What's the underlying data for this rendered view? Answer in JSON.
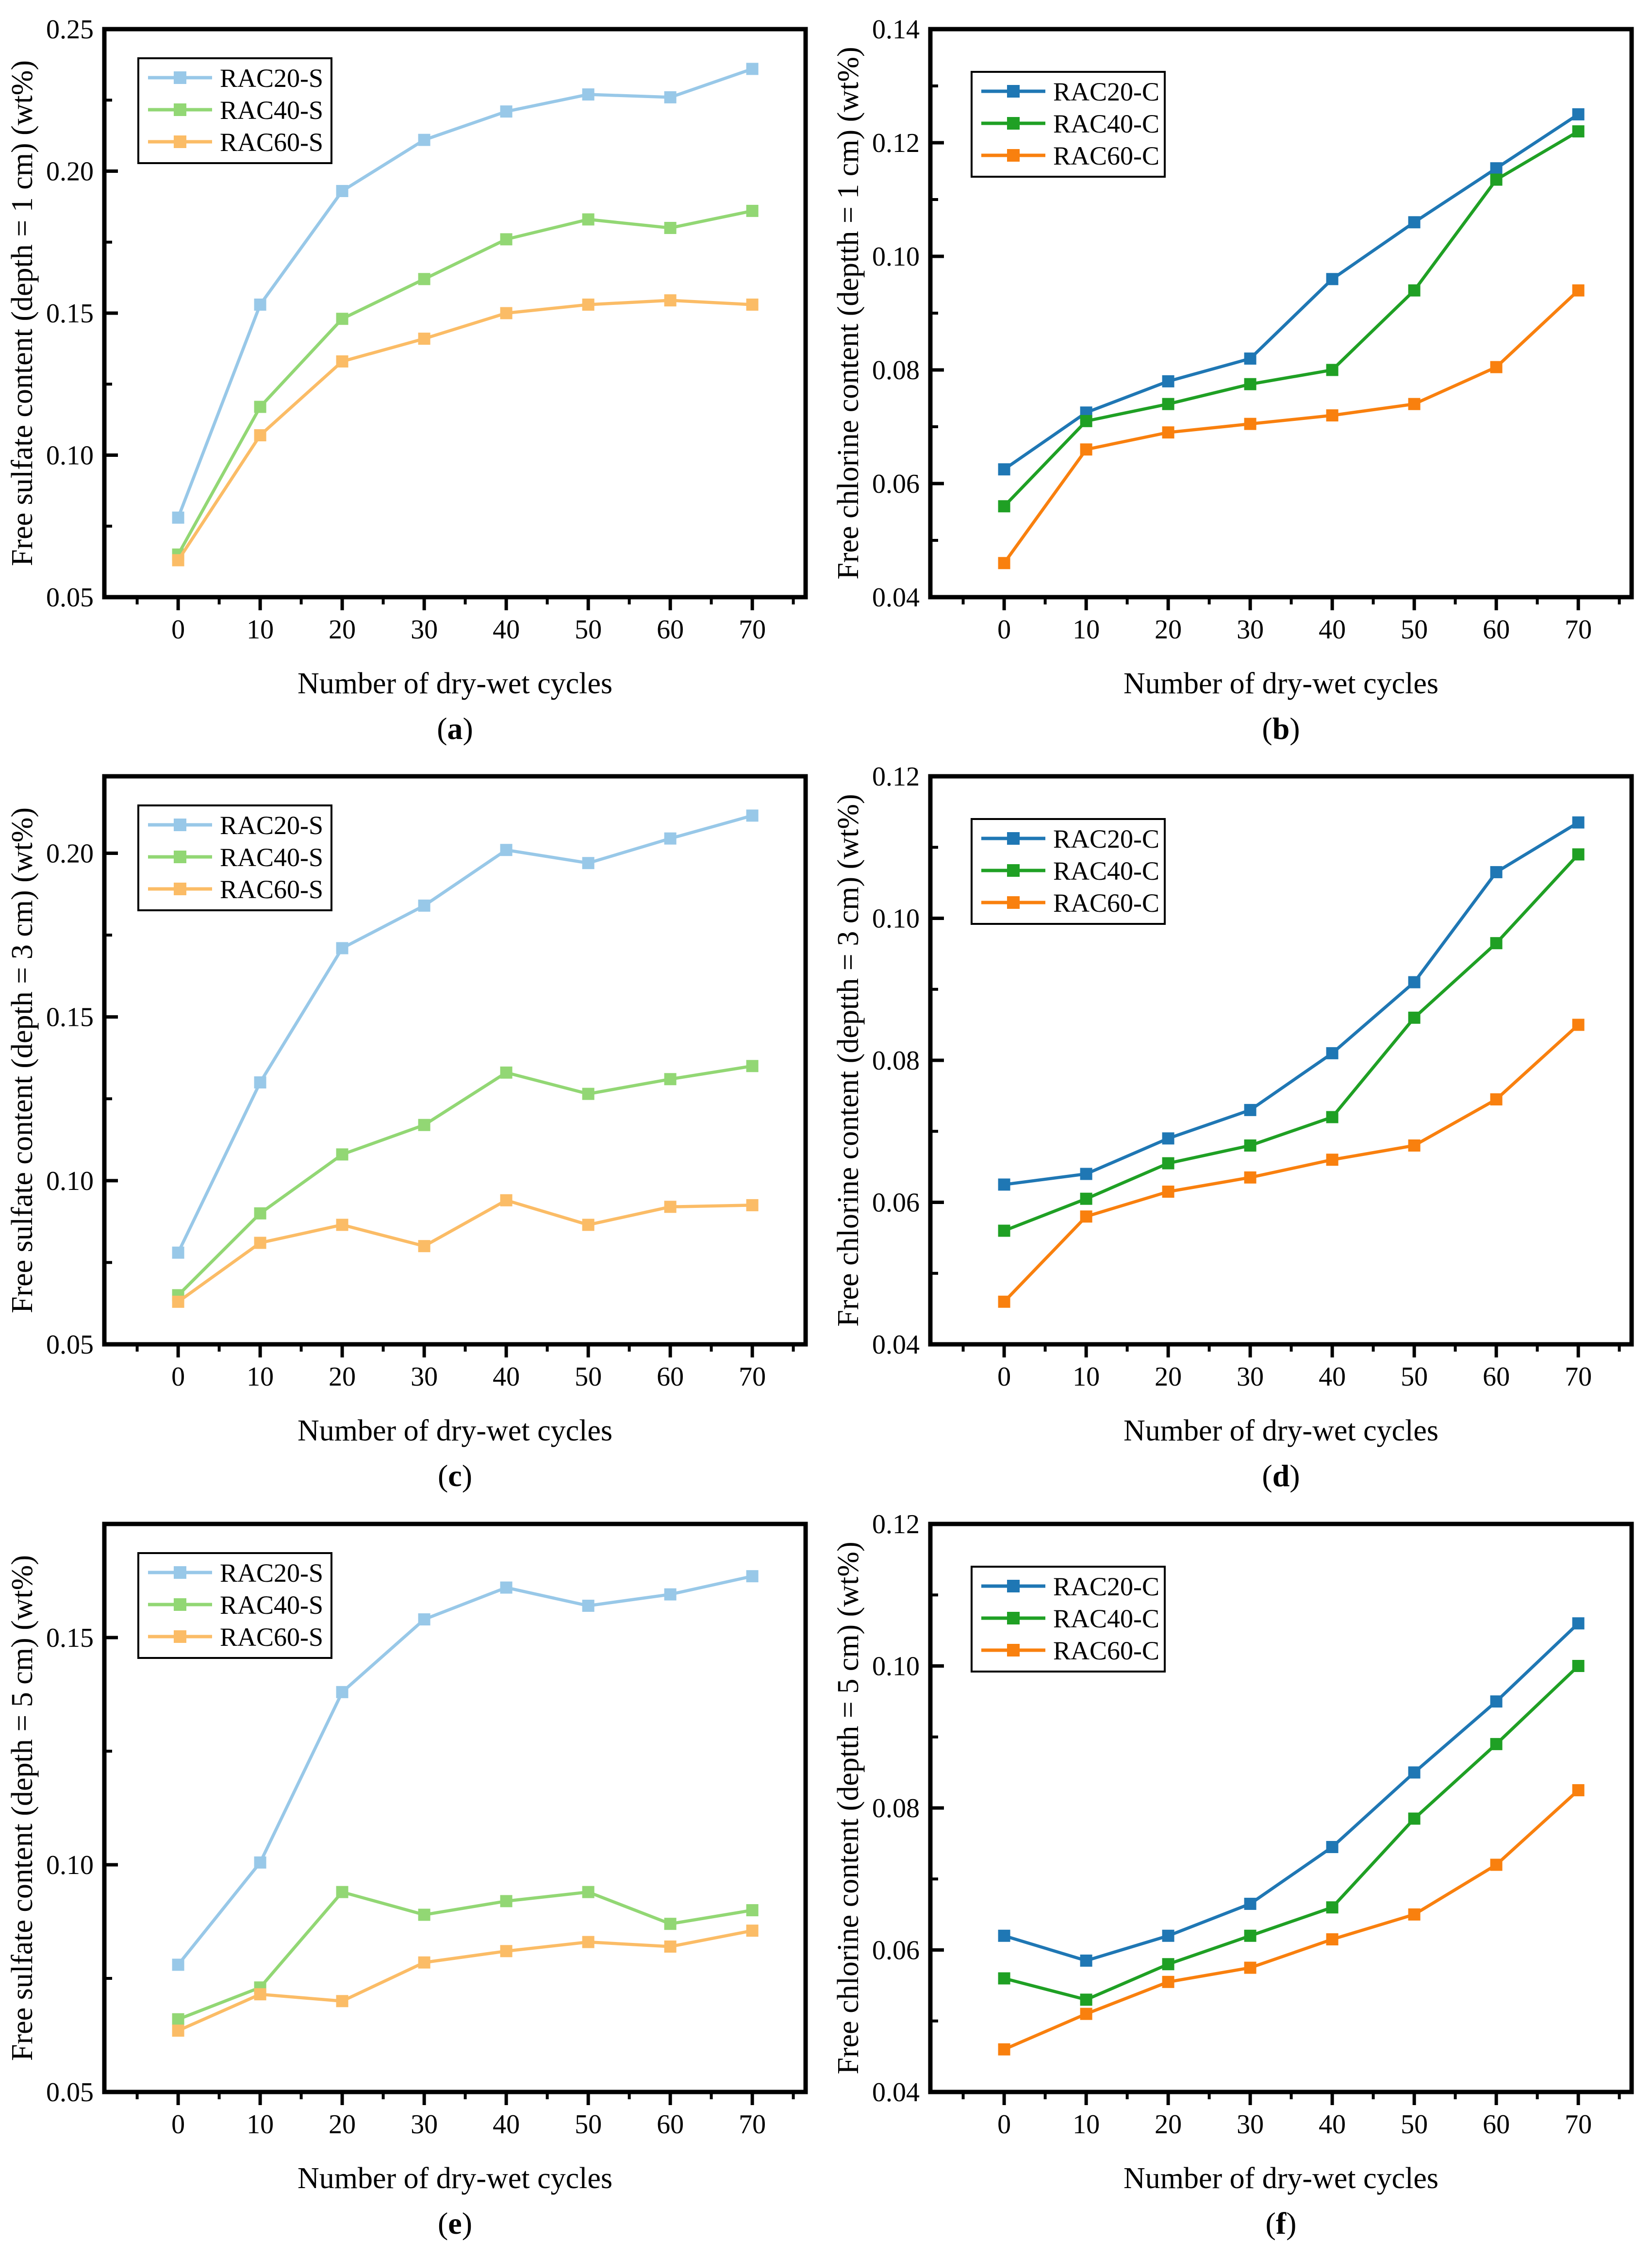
{
  "figure": {
    "background": "#ffffff",
    "frame_color": "#000000",
    "xlabel": "Number of dry-wet cycles",
    "x_major_ticks": [
      0,
      10,
      20,
      30,
      40,
      50,
      60,
      70
    ],
    "x_minor_ticks": [
      -5,
      5,
      15,
      25,
      35,
      45,
      55,
      65,
      75
    ],
    "xlim": [
      -9,
      76.5
    ]
  },
  "palette": {
    "sulfate_light_blue": "#98C8E8",
    "sulfate_light_green": "#92D774",
    "sulfate_light_orange": "#FBBC66",
    "chlorine_blue": "#1F77B4",
    "chlorine_green": "#1FA024",
    "chlorine_orange": "#F9800E"
  },
  "chart_data": [
    {
      "id": "a",
      "letter": "a",
      "type": "line",
      "xlabel": "Number of dry-wet cycles",
      "ylabel": "Free sulfate content (depth = 1 cm) (wt%)",
      "x": [
        0,
        10,
        20,
        30,
        40,
        50,
        60,
        70
      ],
      "ylim": [
        0.05,
        0.25
      ],
      "yticks_major": [
        0.05,
        0.1,
        0.15,
        0.2,
        0.25
      ],
      "yticks_minor": [
        0.075,
        0.125,
        0.175,
        0.225
      ],
      "ytick_decimals": 2,
      "legend_side": "left",
      "series": [
        {
          "name": "RAC20-S",
          "color": "#98C8E8",
          "values": [
            0.078,
            0.153,
            0.193,
            0.211,
            0.221,
            0.227,
            0.226,
            0.236
          ]
        },
        {
          "name": "RAC40-S",
          "color": "#92D774",
          "values": [
            0.065,
            0.117,
            0.148,
            0.162,
            0.176,
            0.183,
            0.18,
            0.186
          ]
        },
        {
          "name": "RAC60-S",
          "color": "#FBBC66",
          "values": [
            0.063,
            0.107,
            0.133,
            0.141,
            0.15,
            0.153,
            0.1545,
            0.153
          ]
        }
      ]
    },
    {
      "id": "b",
      "letter": "b",
      "type": "line",
      "xlabel": "Number of dry-wet cycles",
      "ylabel": "Free chlorine content (deptth = 1 cm) (wt%)",
      "x": [
        0,
        10,
        20,
        30,
        40,
        50,
        60,
        70
      ],
      "ylim": [
        0.04,
        0.14
      ],
      "yticks_major": [
        0.04,
        0.06,
        0.08,
        0.1,
        0.12,
        0.14
      ],
      "yticks_minor": [
        0.05,
        0.07,
        0.09,
        0.11,
        0.13
      ],
      "ytick_decimals": 2,
      "legend_side": "right",
      "series": [
        {
          "name": "RAC20-C",
          "color": "#1F77B4",
          "values": [
            0.0625,
            0.0725,
            0.078,
            0.082,
            0.096,
            0.106,
            0.1155,
            0.125
          ]
        },
        {
          "name": "RAC40-C",
          "color": "#1FA024",
          "values": [
            0.056,
            0.071,
            0.074,
            0.0775,
            0.08,
            0.094,
            0.1135,
            0.122
          ]
        },
        {
          "name": "RAC60-C",
          "color": "#F9800E",
          "values": [
            0.046,
            0.066,
            0.069,
            0.0705,
            0.072,
            0.074,
            0.0805,
            0.094
          ]
        }
      ]
    },
    {
      "id": "c",
      "letter": "c",
      "type": "line",
      "xlabel": "Number of dry-wet cycles",
      "ylabel": "Free sulfate content (depth = 3 cm) (wt%)",
      "x": [
        0,
        10,
        20,
        30,
        40,
        50,
        60,
        70
      ],
      "ylim": [
        0.05,
        0.2235
      ],
      "yticks_major": [
        0.05,
        0.1,
        0.15,
        0.2
      ],
      "yticks_minor": [
        0.075,
        0.125,
        0.175
      ],
      "ytick_decimals": 2,
      "legend_side": "left",
      "series": [
        {
          "name": "RAC20-S",
          "color": "#98C8E8",
          "values": [
            0.078,
            0.13,
            0.171,
            0.184,
            0.201,
            0.197,
            0.2045,
            0.2115
          ]
        },
        {
          "name": "RAC40-S",
          "color": "#92D774",
          "values": [
            0.065,
            0.09,
            0.108,
            0.117,
            0.133,
            0.1265,
            0.131,
            0.135
          ]
        },
        {
          "name": "RAC60-S",
          "color": "#FBBC66",
          "values": [
            0.063,
            0.081,
            0.0865,
            0.08,
            0.094,
            0.0865,
            0.092,
            0.0925
          ]
        }
      ]
    },
    {
      "id": "d",
      "letter": "d",
      "type": "line",
      "xlabel": "Number of dry-wet cycles",
      "ylabel": "Free chlorine content (deptth = 3 cm) (wt%)",
      "x": [
        0,
        10,
        20,
        30,
        40,
        50,
        60,
        70
      ],
      "ylim": [
        0.04,
        0.12
      ],
      "yticks_major": [
        0.04,
        0.06,
        0.08,
        0.1,
        0.12
      ],
      "yticks_minor": [
        0.05,
        0.07,
        0.09,
        0.11
      ],
      "ytick_decimals": 2,
      "legend_side": "right",
      "series": [
        {
          "name": "RAC20-C",
          "color": "#1F77B4",
          "values": [
            0.0625,
            0.064,
            0.069,
            0.073,
            0.081,
            0.091,
            0.1065,
            0.1135
          ]
        },
        {
          "name": "RAC40-C",
          "color": "#1FA024",
          "values": [
            0.056,
            0.0605,
            0.0655,
            0.068,
            0.072,
            0.086,
            0.0965,
            0.109
          ]
        },
        {
          "name": "RAC60-C",
          "color": "#F9800E",
          "values": [
            0.046,
            0.058,
            0.0615,
            0.0635,
            0.066,
            0.068,
            0.0745,
            0.085
          ]
        }
      ]
    },
    {
      "id": "e",
      "letter": "e",
      "type": "line",
      "xlabel": "Number of dry-wet cycles",
      "ylabel": "Free sulfate content (depth = 5 cm) (wt%)",
      "x": [
        0,
        10,
        20,
        30,
        40,
        50,
        60,
        70
      ],
      "ylim": [
        0.05,
        0.175
      ],
      "yticks_major": [
        0.05,
        0.1,
        0.15
      ],
      "yticks_minor": [
        0.075,
        0.125
      ],
      "ytick_decimals": 2,
      "legend_side": "left",
      "series": [
        {
          "name": "RAC20-S",
          "color": "#98C8E8",
          "values": [
            0.078,
            0.1005,
            0.138,
            0.154,
            0.161,
            0.157,
            0.1595,
            0.1635
          ]
        },
        {
          "name": "RAC40-S",
          "color": "#92D774",
          "values": [
            0.066,
            0.073,
            0.094,
            0.089,
            0.092,
            0.094,
            0.087,
            0.09
          ]
        },
        {
          "name": "RAC60-S",
          "color": "#FBBC66",
          "values": [
            0.0635,
            0.0715,
            0.07,
            0.0785,
            0.081,
            0.083,
            0.082,
            0.0855
          ]
        }
      ]
    },
    {
      "id": "f",
      "letter": "f",
      "type": "line",
      "xlabel": "Number of dry-wet cycles",
      "ylabel": "Free chlorine content (deptth = 5 cm) (wt%)",
      "x": [
        0,
        10,
        20,
        30,
        40,
        50,
        60,
        70
      ],
      "ylim": [
        0.04,
        0.12
      ],
      "yticks_major": [
        0.04,
        0.06,
        0.08,
        0.1,
        0.12
      ],
      "yticks_minor": [
        0.05,
        0.07,
        0.09,
        0.11
      ],
      "ytick_decimals": 2,
      "legend_side": "right",
      "series": [
        {
          "name": "RAC20-C",
          "color": "#1F77B4",
          "values": [
            0.062,
            0.0585,
            0.062,
            0.0665,
            0.0745,
            0.085,
            0.095,
            0.106
          ]
        },
        {
          "name": "RAC40-C",
          "color": "#1FA024",
          "values": [
            0.056,
            0.053,
            0.058,
            0.062,
            0.066,
            0.0785,
            0.089,
            0.1
          ]
        },
        {
          "name": "RAC60-C",
          "color": "#F9800E",
          "values": [
            0.046,
            0.051,
            0.0555,
            0.0575,
            0.0615,
            0.065,
            0.072,
            0.0825
          ]
        }
      ]
    }
  ]
}
